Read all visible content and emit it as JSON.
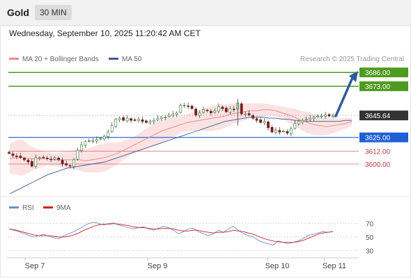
{
  "header": {
    "title": "Gold",
    "interval": "30 MIN"
  },
  "datetime": "Wednesday, September 10, 2025 11:20:42 AM CET",
  "legend": {
    "items": [
      {
        "label": "MA 20 + Bollinger Bands",
        "color": "#f08a8a"
      },
      {
        "label": "MA 50",
        "color": "#3a5a98"
      }
    ],
    "credit": "Research © 2025 Trading Central"
  },
  "colors": {
    "resistance": "#4f9a1e",
    "support": "#1f5fd6",
    "last": "#333333",
    "level_red": "#e06060",
    "arrow": "#2e5b9e",
    "band": "#fadcdc",
    "ma20": "#f08a8a",
    "ma50": "#3a5a98",
    "rsi": "#6a8fd8",
    "rsi_ma": "#cc2222"
  },
  "chart_data": [
    {
      "type": "candlestick",
      "title": "Gold",
      "x_labels": [
        "Sep 7",
        "Sep 9",
        "Sep 10",
        "Sep 11"
      ],
      "ylim": [
        3570,
        3692
      ],
      "close_path": [
        3610,
        3608,
        3607,
        3606,
        3604,
        3602,
        3598,
        3606,
        3606,
        3606,
        3605,
        3604,
        3606,
        3604,
        3600,
        3599,
        3598,
        3604,
        3613,
        3618,
        3621,
        3622,
        3622,
        3623,
        3624,
        3626,
        3630,
        3636,
        3642,
        3643,
        3641,
        3643,
        3641,
        3641,
        3642,
        3640,
        3639,
        3640,
        3641,
        3643,
        3644,
        3644,
        3646,
        3647,
        3648,
        3655,
        3655,
        3654,
        3652,
        3646,
        3648,
        3651,
        3650,
        3648,
        3650,
        3654,
        3652,
        3649,
        3652,
        3651,
        3657,
        3647,
        3647,
        3646,
        3643,
        3641,
        3639,
        3640,
        3634,
        3630,
        3632,
        3630,
        3631,
        3629,
        3633,
        3638,
        3640,
        3641,
        3642,
        3643,
        3644,
        3645,
        3645,
        3646,
        3645,
        3645.64
      ],
      "ma20_path": [
        3605,
        3606,
        3606,
        3605,
        3605,
        3605,
        3605,
        3604,
        3604,
        3604,
        3604,
        3604,
        3603,
        3604,
        3605,
        3606,
        3608,
        3610,
        3613,
        3616,
        3619,
        3622,
        3625,
        3628,
        3631,
        3633,
        3635,
        3637,
        3639,
        3640,
        3641,
        3642,
        3643,
        3644,
        3645,
        3647,
        3648,
        3649,
        3650,
        3650,
        3651,
        3651,
        3650,
        3648,
        3646,
        3644,
        3641,
        3639,
        3637,
        3636,
        3635,
        3636,
        3637,
        3638,
        3640
      ],
      "band_half_width": [
        14,
        16,
        17,
        13,
        10,
        8,
        6,
        6,
        7,
        8,
        9,
        10,
        11,
        12,
        13,
        13,
        12,
        10,
        9,
        8,
        8,
        9,
        10,
        11,
        11,
        10,
        9,
        8,
        8,
        9,
        10,
        11,
        12,
        12,
        11,
        10,
        9,
        8,
        7,
        7,
        6,
        5,
        5,
        6,
        7,
        8,
        9,
        10,
        10,
        9,
        8,
        7,
        6,
        5,
        4
      ],
      "ma50_path": [
        3572,
        3575,
        3578,
        3581,
        3584,
        3587,
        3590,
        3592,
        3594,
        3596,
        3597,
        3598,
        3599,
        3600,
        3601,
        3602,
        3604,
        3606,
        3608,
        3610,
        3612,
        3614,
        3616,
        3618,
        3620,
        3622,
        3624,
        3626,
        3628,
        3630,
        3632,
        3634,
        3636,
        3638,
        3640,
        3641,
        3642,
        3643,
        3644,
        3644,
        3644,
        3643,
        3643,
        3642,
        3642,
        3641,
        3641,
        3640,
        3640,
        3640,
        3640,
        3640,
        3640,
        3641,
        3641
      ],
      "levels": [
        {
          "value": 3686.0,
          "label": "3686.00",
          "kind": "resistance"
        },
        {
          "value": 3673.0,
          "label": "3673.00",
          "kind": "resistance"
        },
        {
          "value": 3645.64,
          "label": "3645.64",
          "kind": "last"
        },
        {
          "value": 3625.0,
          "label": "3625.00",
          "kind": "support"
        },
        {
          "value": 3612.0,
          "label": "3612.00",
          "kind": "minor"
        },
        {
          "value": 3600.0,
          "label": "3600.00",
          "kind": "minor"
        }
      ],
      "arrow": {
        "from": 3645.64,
        "to": 3686.0,
        "direction": "up"
      }
    },
    {
      "type": "line",
      "series": [
        {
          "name": "RSI",
          "values": [
            62,
            60,
            58,
            55,
            52,
            50,
            52,
            54,
            51,
            49,
            47,
            52,
            55,
            58,
            62,
            66,
            70,
            72,
            70,
            68,
            70,
            71,
            68,
            66,
            64,
            62,
            64,
            65,
            62,
            60,
            63,
            66,
            64,
            60,
            55,
            58,
            62,
            63,
            58,
            55,
            52,
            55,
            60,
            57,
            62,
            66,
            60,
            55,
            52,
            50,
            45,
            42,
            40,
            38,
            44,
            42,
            40,
            42,
            44,
            48,
            52,
            54,
            56,
            58,
            57,
            58
          ]
        },
        {
          "name": "9MA",
          "values": [
            62,
            61,
            59,
            57,
            55,
            53,
            52,
            52,
            52,
            51,
            50,
            50,
            51,
            53,
            56,
            60,
            63,
            66,
            68,
            69,
            69,
            70,
            69,
            68,
            67,
            65,
            64,
            64,
            63,
            62,
            62,
            63,
            63,
            62,
            60,
            59,
            59,
            60,
            60,
            58,
            57,
            56,
            57,
            57,
            58,
            60,
            59,
            58,
            56,
            54,
            51,
            48,
            46,
            44,
            43,
            42,
            42,
            42,
            43,
            45,
            48,
            51,
            54,
            56,
            57,
            58
          ]
        }
      ],
      "ylim": [
        20,
        80
      ],
      "yticks": [
        70,
        50,
        30
      ]
    }
  ]
}
